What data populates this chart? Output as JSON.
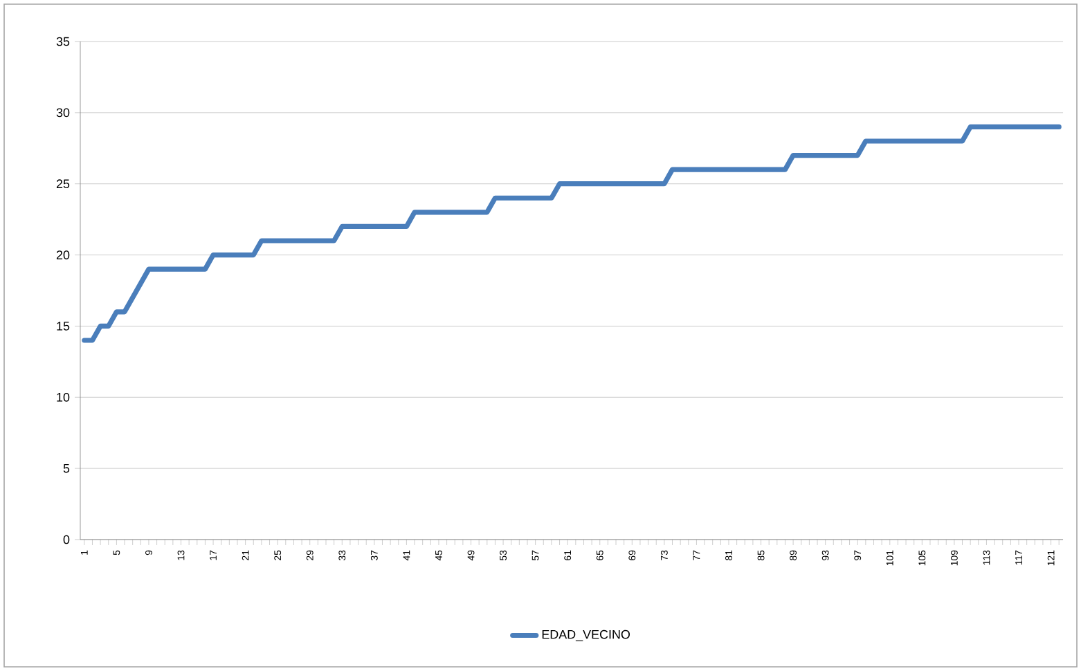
{
  "chart_data": {
    "type": "line",
    "categories": [
      "1",
      null,
      null,
      null,
      "5",
      null,
      null,
      null,
      "9",
      null,
      null,
      null,
      "13",
      null,
      null,
      null,
      "17",
      null,
      null,
      null,
      "21",
      null,
      null,
      null,
      "25",
      null,
      null,
      null,
      "29",
      null,
      null,
      null,
      "33",
      null,
      null,
      null,
      "37",
      null,
      null,
      null,
      "41",
      null,
      null,
      null,
      "45",
      null,
      null,
      null,
      "49",
      null,
      null,
      null,
      "53",
      null,
      null,
      null,
      "57",
      null,
      null,
      null,
      "61",
      null,
      null,
      null,
      "65",
      null,
      null,
      null,
      "69",
      null,
      null,
      null,
      "73",
      null,
      null,
      null,
      "77",
      null,
      null,
      null,
      "81",
      null,
      null,
      null,
      "85",
      null,
      null,
      null,
      "89",
      null,
      null,
      null,
      "93",
      null,
      null,
      null,
      "97",
      null,
      null,
      null,
      "101",
      null,
      null,
      null,
      "105",
      null,
      null,
      null,
      "109",
      null,
      null,
      null,
      "113",
      null,
      null,
      null,
      "117",
      null,
      null,
      null,
      "121",
      null
    ],
    "series": [
      {
        "name": "EDAD_VECINO",
        "color": "#4a7ebb",
        "values": [
          14,
          14,
          15,
          15,
          16,
          16,
          17,
          18,
          19,
          19,
          19,
          19,
          19,
          19,
          19,
          19,
          20,
          20,
          20,
          20,
          20,
          20,
          21,
          21,
          21,
          21,
          21,
          21,
          21,
          21,
          21,
          21,
          22,
          22,
          22,
          22,
          22,
          22,
          22,
          22,
          22,
          23,
          23,
          23,
          23,
          23,
          23,
          23,
          23,
          23,
          23,
          24,
          24,
          24,
          24,
          24,
          24,
          24,
          24,
          25,
          25,
          25,
          25,
          25,
          25,
          25,
          25,
          25,
          25,
          25,
          25,
          25,
          25,
          26,
          26,
          26,
          26,
          26,
          26,
          26,
          26,
          26,
          26,
          26,
          26,
          26,
          26,
          26,
          27,
          27,
          27,
          27,
          27,
          27,
          27,
          27,
          27,
          28,
          28,
          28,
          28,
          28,
          28,
          28,
          28,
          28,
          28,
          28,
          28,
          28,
          29,
          29,
          29,
          29,
          29,
          29,
          29,
          29,
          29,
          29,
          29,
          29
        ]
      }
    ],
    "ylim": [
      0,
      35
    ],
    "yticks": [
      0,
      5,
      10,
      15,
      20,
      25,
      30,
      35
    ],
    "grid": "y",
    "legend": "bottom",
    "marker": "none",
    "line_style": "solid"
  }
}
